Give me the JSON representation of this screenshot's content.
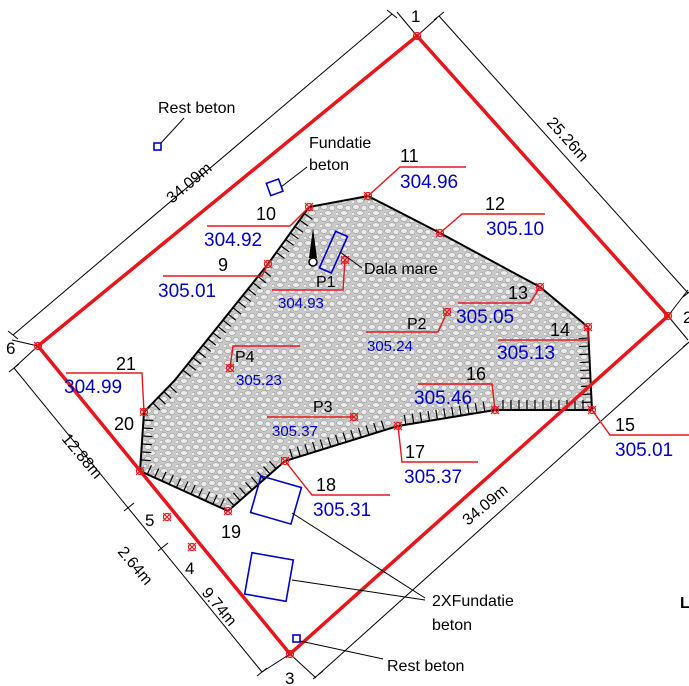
{
  "colors": {
    "boundary": "#e8161b",
    "elevation_text": "#0000cc",
    "dimension": "#000000",
    "fill_pattern": "#cfcfcf",
    "foundation": "#0000cc"
  },
  "corner_labels": {
    "c1": "1",
    "c2": "2",
    "c3": "3",
    "c4": "4",
    "c5": "5",
    "c6": "6"
  },
  "dimensions": {
    "top_left": "34.09m",
    "top_right": "25.26m",
    "bottom_right": "34.09m",
    "left_upper": "12.88m",
    "left_mid": "2.64m",
    "left_lower": "9.74m"
  },
  "survey_points": [
    {
      "id": "11",
      "elevation": "304.96"
    },
    {
      "id": "12",
      "elevation": "305.10"
    },
    {
      "id": "10",
      "elevation": "304.92"
    },
    {
      "id": "9",
      "elevation": "305.01"
    },
    {
      "id": "13",
      "elevation": "305.05"
    },
    {
      "id": "14",
      "elevation": "305.13"
    },
    {
      "id": "21",
      "elevation": "304.99"
    },
    {
      "id": "16",
      "elevation": "305.46"
    },
    {
      "id": "15",
      "elevation": "305.01"
    },
    {
      "id": "17",
      "elevation": "305.37"
    },
    {
      "id": "18",
      "elevation": "305.31"
    },
    {
      "id": "20",
      "elevation": ""
    },
    {
      "id": "19",
      "elevation": ""
    }
  ],
  "interior_points": [
    {
      "id": "P1",
      "elevation": "304.93"
    },
    {
      "id": "P2",
      "elevation": "305.24"
    },
    {
      "id": "P4",
      "elevation": "305.23"
    },
    {
      "id": "P3",
      "elevation": "305.37"
    }
  ],
  "annotations": {
    "rest_beton_top": "Rest beton",
    "fundatie_line1": "Fundatie",
    "fundatie_line2": "beton",
    "dala_mare": "Dala mare",
    "fundatie_2x_line1": "2XFundatie",
    "fundatie_2x_line2": "beton",
    "rest_beton_bottom": "Rest beton",
    "cut_off_letter": "L"
  }
}
